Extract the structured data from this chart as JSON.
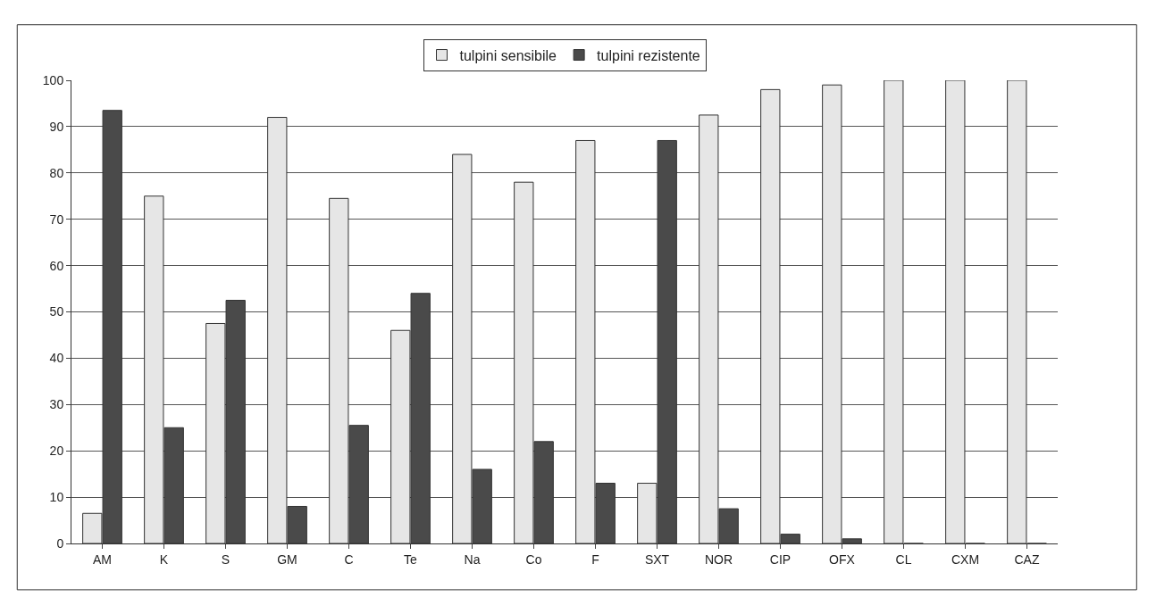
{
  "chart_data": {
    "type": "bar",
    "categories": [
      "AM",
      "K",
      "S",
      "GM",
      "C",
      "Te",
      "Na",
      "Co",
      "F",
      "SXT",
      "NOR",
      "CIP",
      "OFX",
      "CL",
      "CXM",
      "CAZ"
    ],
    "series": [
      {
        "name": "tulpini sensibile",
        "color": "#e6e6e6",
        "values": [
          6.5,
          75,
          47.5,
          92,
          74.5,
          46,
          84,
          78,
          87,
          13,
          92.5,
          98,
          99,
          100,
          100,
          100
        ]
      },
      {
        "name": "tulpini rezistente",
        "color": "#4a4a4a",
        "values": [
          93.5,
          25,
          52.5,
          8,
          25.5,
          54,
          16,
          22,
          13,
          87,
          7.5,
          2,
          1,
          0,
          0,
          0
        ]
      }
    ],
    "ylim": [
      0,
      100
    ],
    "yticks": [
      0,
      10,
      20,
      30,
      40,
      50,
      60,
      70,
      80,
      90,
      100
    ],
    "grid": "y",
    "legend": "top"
  }
}
